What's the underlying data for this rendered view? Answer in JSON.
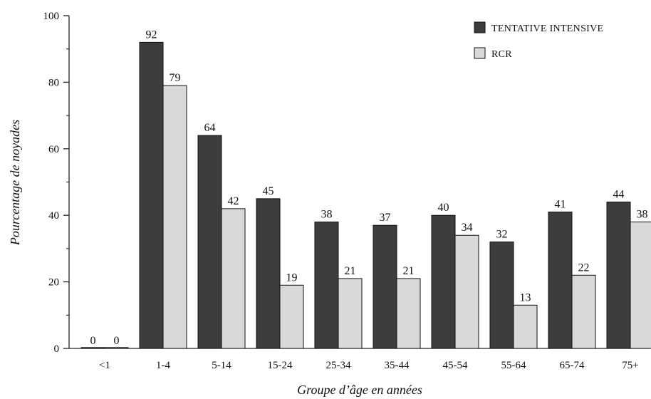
{
  "chart_data": {
    "type": "bar",
    "categories": [
      "<1",
      "1-4",
      "5-14",
      "15-24",
      "25-34",
      "35-44",
      "45-54",
      "55-64",
      "65-74",
      "75+"
    ],
    "series": [
      {
        "name": "TENTATIVE INTENSIVE",
        "color": "#3d3d3d",
        "values": [
          0,
          92,
          64,
          45,
          38,
          37,
          40,
          32,
          41,
          44
        ]
      },
      {
        "name": "RCR",
        "color": "#d9d9d9",
        "values": [
          0,
          79,
          42,
          19,
          21,
          21,
          34,
          13,
          22,
          38
        ]
      }
    ],
    "xlabel": "Groupe d’âge en années",
    "ylabel": "Pourcentage de noyades",
    "ylim": [
      0,
      100
    ],
    "yticks": [
      0,
      20,
      40,
      60,
      80,
      100
    ],
    "grid": false,
    "legend_position": "top-right"
  }
}
